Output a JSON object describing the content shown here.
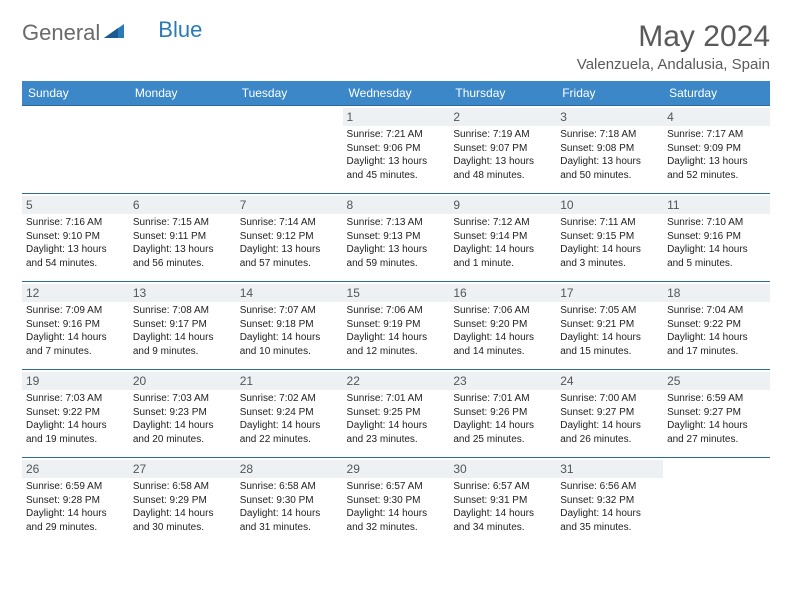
{
  "logo": {
    "general": "General",
    "blue": "Blue"
  },
  "title": "May 2024",
  "location": "Valenzuela, Andalusia, Spain",
  "colors": {
    "header_bg": "#3b87c8",
    "header_text": "#ffffff",
    "border": "#2a6aa0",
    "daynum_bg": "#edf1f3",
    "logo_gray": "#6a6a6a",
    "logo_blue": "#2a7ab8",
    "text": "#222222"
  },
  "day_headers": [
    "Sunday",
    "Monday",
    "Tuesday",
    "Wednesday",
    "Thursday",
    "Friday",
    "Saturday"
  ],
  "weeks": [
    [
      null,
      null,
      null,
      {
        "n": "1",
        "sr": "Sunrise: 7:21 AM",
        "ss": "Sunset: 9:06 PM",
        "d1": "Daylight: 13 hours",
        "d2": "and 45 minutes."
      },
      {
        "n": "2",
        "sr": "Sunrise: 7:19 AM",
        "ss": "Sunset: 9:07 PM",
        "d1": "Daylight: 13 hours",
        "d2": "and 48 minutes."
      },
      {
        "n": "3",
        "sr": "Sunrise: 7:18 AM",
        "ss": "Sunset: 9:08 PM",
        "d1": "Daylight: 13 hours",
        "d2": "and 50 minutes."
      },
      {
        "n": "4",
        "sr": "Sunrise: 7:17 AM",
        "ss": "Sunset: 9:09 PM",
        "d1": "Daylight: 13 hours",
        "d2": "and 52 minutes."
      }
    ],
    [
      {
        "n": "5",
        "sr": "Sunrise: 7:16 AM",
        "ss": "Sunset: 9:10 PM",
        "d1": "Daylight: 13 hours",
        "d2": "and 54 minutes."
      },
      {
        "n": "6",
        "sr": "Sunrise: 7:15 AM",
        "ss": "Sunset: 9:11 PM",
        "d1": "Daylight: 13 hours",
        "d2": "and 56 minutes."
      },
      {
        "n": "7",
        "sr": "Sunrise: 7:14 AM",
        "ss": "Sunset: 9:12 PM",
        "d1": "Daylight: 13 hours",
        "d2": "and 57 minutes."
      },
      {
        "n": "8",
        "sr": "Sunrise: 7:13 AM",
        "ss": "Sunset: 9:13 PM",
        "d1": "Daylight: 13 hours",
        "d2": "and 59 minutes."
      },
      {
        "n": "9",
        "sr": "Sunrise: 7:12 AM",
        "ss": "Sunset: 9:14 PM",
        "d1": "Daylight: 14 hours",
        "d2": "and 1 minute."
      },
      {
        "n": "10",
        "sr": "Sunrise: 7:11 AM",
        "ss": "Sunset: 9:15 PM",
        "d1": "Daylight: 14 hours",
        "d2": "and 3 minutes."
      },
      {
        "n": "11",
        "sr": "Sunrise: 7:10 AM",
        "ss": "Sunset: 9:16 PM",
        "d1": "Daylight: 14 hours",
        "d2": "and 5 minutes."
      }
    ],
    [
      {
        "n": "12",
        "sr": "Sunrise: 7:09 AM",
        "ss": "Sunset: 9:16 PM",
        "d1": "Daylight: 14 hours",
        "d2": "and 7 minutes."
      },
      {
        "n": "13",
        "sr": "Sunrise: 7:08 AM",
        "ss": "Sunset: 9:17 PM",
        "d1": "Daylight: 14 hours",
        "d2": "and 9 minutes."
      },
      {
        "n": "14",
        "sr": "Sunrise: 7:07 AM",
        "ss": "Sunset: 9:18 PM",
        "d1": "Daylight: 14 hours",
        "d2": "and 10 minutes."
      },
      {
        "n": "15",
        "sr": "Sunrise: 7:06 AM",
        "ss": "Sunset: 9:19 PM",
        "d1": "Daylight: 14 hours",
        "d2": "and 12 minutes."
      },
      {
        "n": "16",
        "sr": "Sunrise: 7:06 AM",
        "ss": "Sunset: 9:20 PM",
        "d1": "Daylight: 14 hours",
        "d2": "and 14 minutes."
      },
      {
        "n": "17",
        "sr": "Sunrise: 7:05 AM",
        "ss": "Sunset: 9:21 PM",
        "d1": "Daylight: 14 hours",
        "d2": "and 15 minutes."
      },
      {
        "n": "18",
        "sr": "Sunrise: 7:04 AM",
        "ss": "Sunset: 9:22 PM",
        "d1": "Daylight: 14 hours",
        "d2": "and 17 minutes."
      }
    ],
    [
      {
        "n": "19",
        "sr": "Sunrise: 7:03 AM",
        "ss": "Sunset: 9:22 PM",
        "d1": "Daylight: 14 hours",
        "d2": "and 19 minutes."
      },
      {
        "n": "20",
        "sr": "Sunrise: 7:03 AM",
        "ss": "Sunset: 9:23 PM",
        "d1": "Daylight: 14 hours",
        "d2": "and 20 minutes."
      },
      {
        "n": "21",
        "sr": "Sunrise: 7:02 AM",
        "ss": "Sunset: 9:24 PM",
        "d1": "Daylight: 14 hours",
        "d2": "and 22 minutes."
      },
      {
        "n": "22",
        "sr": "Sunrise: 7:01 AM",
        "ss": "Sunset: 9:25 PM",
        "d1": "Daylight: 14 hours",
        "d2": "and 23 minutes."
      },
      {
        "n": "23",
        "sr": "Sunrise: 7:01 AM",
        "ss": "Sunset: 9:26 PM",
        "d1": "Daylight: 14 hours",
        "d2": "and 25 minutes."
      },
      {
        "n": "24",
        "sr": "Sunrise: 7:00 AM",
        "ss": "Sunset: 9:27 PM",
        "d1": "Daylight: 14 hours",
        "d2": "and 26 minutes."
      },
      {
        "n": "25",
        "sr": "Sunrise: 6:59 AM",
        "ss": "Sunset: 9:27 PM",
        "d1": "Daylight: 14 hours",
        "d2": "and 27 minutes."
      }
    ],
    [
      {
        "n": "26",
        "sr": "Sunrise: 6:59 AM",
        "ss": "Sunset: 9:28 PM",
        "d1": "Daylight: 14 hours",
        "d2": "and 29 minutes."
      },
      {
        "n": "27",
        "sr": "Sunrise: 6:58 AM",
        "ss": "Sunset: 9:29 PM",
        "d1": "Daylight: 14 hours",
        "d2": "and 30 minutes."
      },
      {
        "n": "28",
        "sr": "Sunrise: 6:58 AM",
        "ss": "Sunset: 9:30 PM",
        "d1": "Daylight: 14 hours",
        "d2": "and 31 minutes."
      },
      {
        "n": "29",
        "sr": "Sunrise: 6:57 AM",
        "ss": "Sunset: 9:30 PM",
        "d1": "Daylight: 14 hours",
        "d2": "and 32 minutes."
      },
      {
        "n": "30",
        "sr": "Sunrise: 6:57 AM",
        "ss": "Sunset: 9:31 PM",
        "d1": "Daylight: 14 hours",
        "d2": "and 34 minutes."
      },
      {
        "n": "31",
        "sr": "Sunrise: 6:56 AM",
        "ss": "Sunset: 9:32 PM",
        "d1": "Daylight: 14 hours",
        "d2": "and 35 minutes."
      },
      null
    ]
  ]
}
